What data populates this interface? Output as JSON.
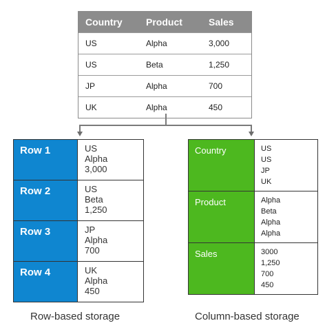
{
  "source_table": {
    "headers": [
      "Country",
      "Product",
      "Sales"
    ],
    "rows": [
      [
        "US",
        "Alpha",
        "3,000"
      ],
      [
        "US",
        "Beta",
        "1,250"
      ],
      [
        "JP",
        "Alpha",
        "700"
      ],
      [
        "UK",
        "Alpha",
        "450"
      ]
    ]
  },
  "row_storage": {
    "caption": "Row-based storage",
    "rows": [
      {
        "label": "Row 1",
        "values": [
          "US",
          "Alpha",
          "3,000"
        ]
      },
      {
        "label": "Row 2",
        "values": [
          "US",
          "Beta",
          "1,250"
        ]
      },
      {
        "label": "Row 3",
        "values": [
          "JP",
          "Alpha",
          "700"
        ]
      },
      {
        "label": "Row 4",
        "values": [
          "UK",
          "Alpha",
          "450"
        ]
      }
    ],
    "color": "#0f86d0"
  },
  "column_storage": {
    "caption": "Column-based storage",
    "columns": [
      {
        "label": "Country",
        "values": [
          "US",
          "US",
          "JP",
          "UK"
        ]
      },
      {
        "label": "Product",
        "values": [
          "Alpha",
          "Beta",
          "Alpha",
          "Alpha"
        ]
      },
      {
        "label": "Sales",
        "values": [
          "3000",
          "1,250",
          "700",
          "450"
        ]
      }
    ],
    "color": "#4db81f"
  }
}
